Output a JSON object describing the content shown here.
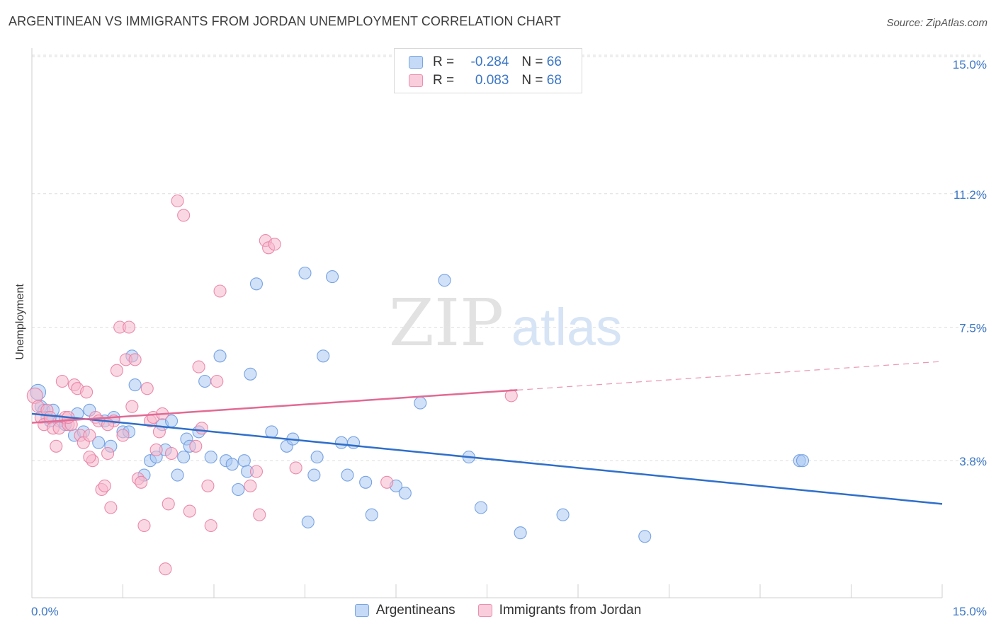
{
  "title": "ARGENTINEAN VS IMMIGRANTS FROM JORDAN UNEMPLOYMENT CORRELATION CHART",
  "source": "Source: ZipAtlas.com",
  "watermark": {
    "zip": "ZIP",
    "atlas": "atlas"
  },
  "legend": {
    "rows": [
      {
        "r_label": "R =",
        "r_value": "-0.284",
        "n_label": "N =",
        "n_value": "66"
      },
      {
        "r_label": "R =",
        "r_value": "0.083",
        "n_label": "N =",
        "n_value": "68"
      }
    ]
  },
  "bottom_legend": [
    "Argentineans",
    "Immigrants from Jordan"
  ],
  "colors": {
    "blue_fill": "#a9c8f2",
    "blue_stroke": "#6b9ae0",
    "blue_line": "#2f6fca",
    "pink_fill": "#f5b8cc",
    "pink_stroke": "#e87fa3",
    "pink_line": "#e26a94",
    "tick_text": "#3b76c4",
    "grid": "#dddddd"
  },
  "chart_data": {
    "type": "scatter",
    "title": "ARGENTINEAN VS IMMIGRANTS FROM JORDAN UNEMPLOYMENT CORRELATION CHART",
    "xlabel": "",
    "ylabel": "Unemployment",
    "xlim": [
      0,
      15
    ],
    "ylim": [
      0,
      15.5
    ],
    "x_tick_labels": [
      {
        "value": 0,
        "label": "0.0%"
      },
      {
        "value": 15,
        "label": "15.0%"
      }
    ],
    "x_minor_ticks": [
      1.5,
      3.0,
      4.5,
      6.0,
      7.5,
      9.0,
      10.5,
      12.0,
      13.5,
      15.0
    ],
    "y_ticks": [
      {
        "value": 3.8,
        "label": "3.8%"
      },
      {
        "value": 7.5,
        "label": "7.5%"
      },
      {
        "value": 11.2,
        "label": "11.2%"
      },
      {
        "value": 15.0,
        "label": "15.0%"
      }
    ],
    "grid": true,
    "legend_position": "top-center",
    "series": [
      {
        "name": "Argentineans",
        "color": "#a9c8f2",
        "trend": {
          "x": [
            0,
            15
          ],
          "y": [
            5.1,
            2.6
          ],
          "dashed_from": null
        },
        "points": [
          [
            0.1,
            5.7
          ],
          [
            0.15,
            5.3
          ],
          [
            0.2,
            5.2
          ],
          [
            0.25,
            5.0
          ],
          [
            0.3,
            4.9
          ],
          [
            0.45,
            4.9
          ],
          [
            0.55,
            4.8
          ],
          [
            0.7,
            4.5
          ],
          [
            0.75,
            5.1
          ],
          [
            0.85,
            4.6
          ],
          [
            0.95,
            5.2
          ],
          [
            1.1,
            4.3
          ],
          [
            1.2,
            4.9
          ],
          [
            1.3,
            4.2
          ],
          [
            1.35,
            5.0
          ],
          [
            1.5,
            4.6
          ],
          [
            1.6,
            4.6
          ],
          [
            1.7,
            5.9
          ],
          [
            1.65,
            6.7
          ],
          [
            1.85,
            3.4
          ],
          [
            1.95,
            3.8
          ],
          [
            2.05,
            3.9
          ],
          [
            2.15,
            4.8
          ],
          [
            2.2,
            4.1
          ],
          [
            2.3,
            4.9
          ],
          [
            2.4,
            3.4
          ],
          [
            2.5,
            3.9
          ],
          [
            2.55,
            4.4
          ],
          [
            2.6,
            4.2
          ],
          [
            2.75,
            4.6
          ],
          [
            2.85,
            6.0
          ],
          [
            2.95,
            3.9
          ],
          [
            3.1,
            6.7
          ],
          [
            3.2,
            3.8
          ],
          [
            3.3,
            3.7
          ],
          [
            3.4,
            3.0
          ],
          [
            3.5,
            3.8
          ],
          [
            3.55,
            3.5
          ],
          [
            3.6,
            6.2
          ],
          [
            3.7,
            8.7
          ],
          [
            3.95,
            4.6
          ],
          [
            4.2,
            4.2
          ],
          [
            4.3,
            4.4
          ],
          [
            4.5,
            9.0
          ],
          [
            4.55,
            2.1
          ],
          [
            4.65,
            3.4
          ],
          [
            4.7,
            3.9
          ],
          [
            4.8,
            6.7
          ],
          [
            4.95,
            8.9
          ],
          [
            5.1,
            4.3
          ],
          [
            5.2,
            3.4
          ],
          [
            5.3,
            4.3
          ],
          [
            5.5,
            3.2
          ],
          [
            5.6,
            2.3
          ],
          [
            6.0,
            3.1
          ],
          [
            6.15,
            2.9
          ],
          [
            6.4,
            5.4
          ],
          [
            6.8,
            8.8
          ],
          [
            7.2,
            3.9
          ],
          [
            7.4,
            2.5
          ],
          [
            8.05,
            1.8
          ],
          [
            8.75,
            2.3
          ],
          [
            10.1,
            1.7
          ],
          [
            12.65,
            3.8
          ],
          [
            12.7,
            3.8
          ],
          [
            0.35,
            5.2
          ]
        ]
      },
      {
        "name": "Immigrants from Jordan",
        "color": "#f5b8cc",
        "trend": {
          "x": [
            0,
            15
          ],
          "y": [
            4.85,
            6.55
          ],
          "dashed_from": 8.0
        },
        "points": [
          [
            0.05,
            5.6
          ],
          [
            0.1,
            5.3
          ],
          [
            0.15,
            5.0
          ],
          [
            0.2,
            4.8
          ],
          [
            0.25,
            5.2
          ],
          [
            0.3,
            5.0
          ],
          [
            0.35,
            4.7
          ],
          [
            0.4,
            4.2
          ],
          [
            0.45,
            4.7
          ],
          [
            0.5,
            6.0
          ],
          [
            0.55,
            5.0
          ],
          [
            0.6,
            4.8
          ],
          [
            0.65,
            4.8
          ],
          [
            0.7,
            5.9
          ],
          [
            0.75,
            5.8
          ],
          [
            0.8,
            4.5
          ],
          [
            0.85,
            4.3
          ],
          [
            0.9,
            5.7
          ],
          [
            0.95,
            4.5
          ],
          [
            1.0,
            3.8
          ],
          [
            1.05,
            5.0
          ],
          [
            1.1,
            4.9
          ],
          [
            1.15,
            3.0
          ],
          [
            1.2,
            3.1
          ],
          [
            1.25,
            4.0
          ],
          [
            1.3,
            2.5
          ],
          [
            1.35,
            4.9
          ],
          [
            1.4,
            6.3
          ],
          [
            1.45,
            7.5
          ],
          [
            1.5,
            4.5
          ],
          [
            1.55,
            6.6
          ],
          [
            1.6,
            7.5
          ],
          [
            1.7,
            6.6
          ],
          [
            1.75,
            3.3
          ],
          [
            1.8,
            3.2
          ],
          [
            1.85,
            2.0
          ],
          [
            1.9,
            5.8
          ],
          [
            1.95,
            4.9
          ],
          [
            2.0,
            5.0
          ],
          [
            2.05,
            4.1
          ],
          [
            2.1,
            4.6
          ],
          [
            2.15,
            5.1
          ],
          [
            2.2,
            0.8
          ],
          [
            2.25,
            2.6
          ],
          [
            2.3,
            4.0
          ],
          [
            2.4,
            11.0
          ],
          [
            2.5,
            10.6
          ],
          [
            2.6,
            2.4
          ],
          [
            2.7,
            4.2
          ],
          [
            2.75,
            6.4
          ],
          [
            2.8,
            4.7
          ],
          [
            2.9,
            3.1
          ],
          [
            2.95,
            2.0
          ],
          [
            3.05,
            6.0
          ],
          [
            3.1,
            8.5
          ],
          [
            3.6,
            3.1
          ],
          [
            3.7,
            3.5
          ],
          [
            3.75,
            2.3
          ],
          [
            3.85,
            9.9
          ],
          [
            3.9,
            9.7
          ],
          [
            4.0,
            9.8
          ],
          [
            4.35,
            3.6
          ],
          [
            5.85,
            3.2
          ],
          [
            7.9,
            5.6
          ],
          [
            1.65,
            5.3
          ],
          [
            0.95,
            3.9
          ],
          [
            1.25,
            4.8
          ],
          [
            0.6,
            5.0
          ]
        ]
      }
    ]
  }
}
